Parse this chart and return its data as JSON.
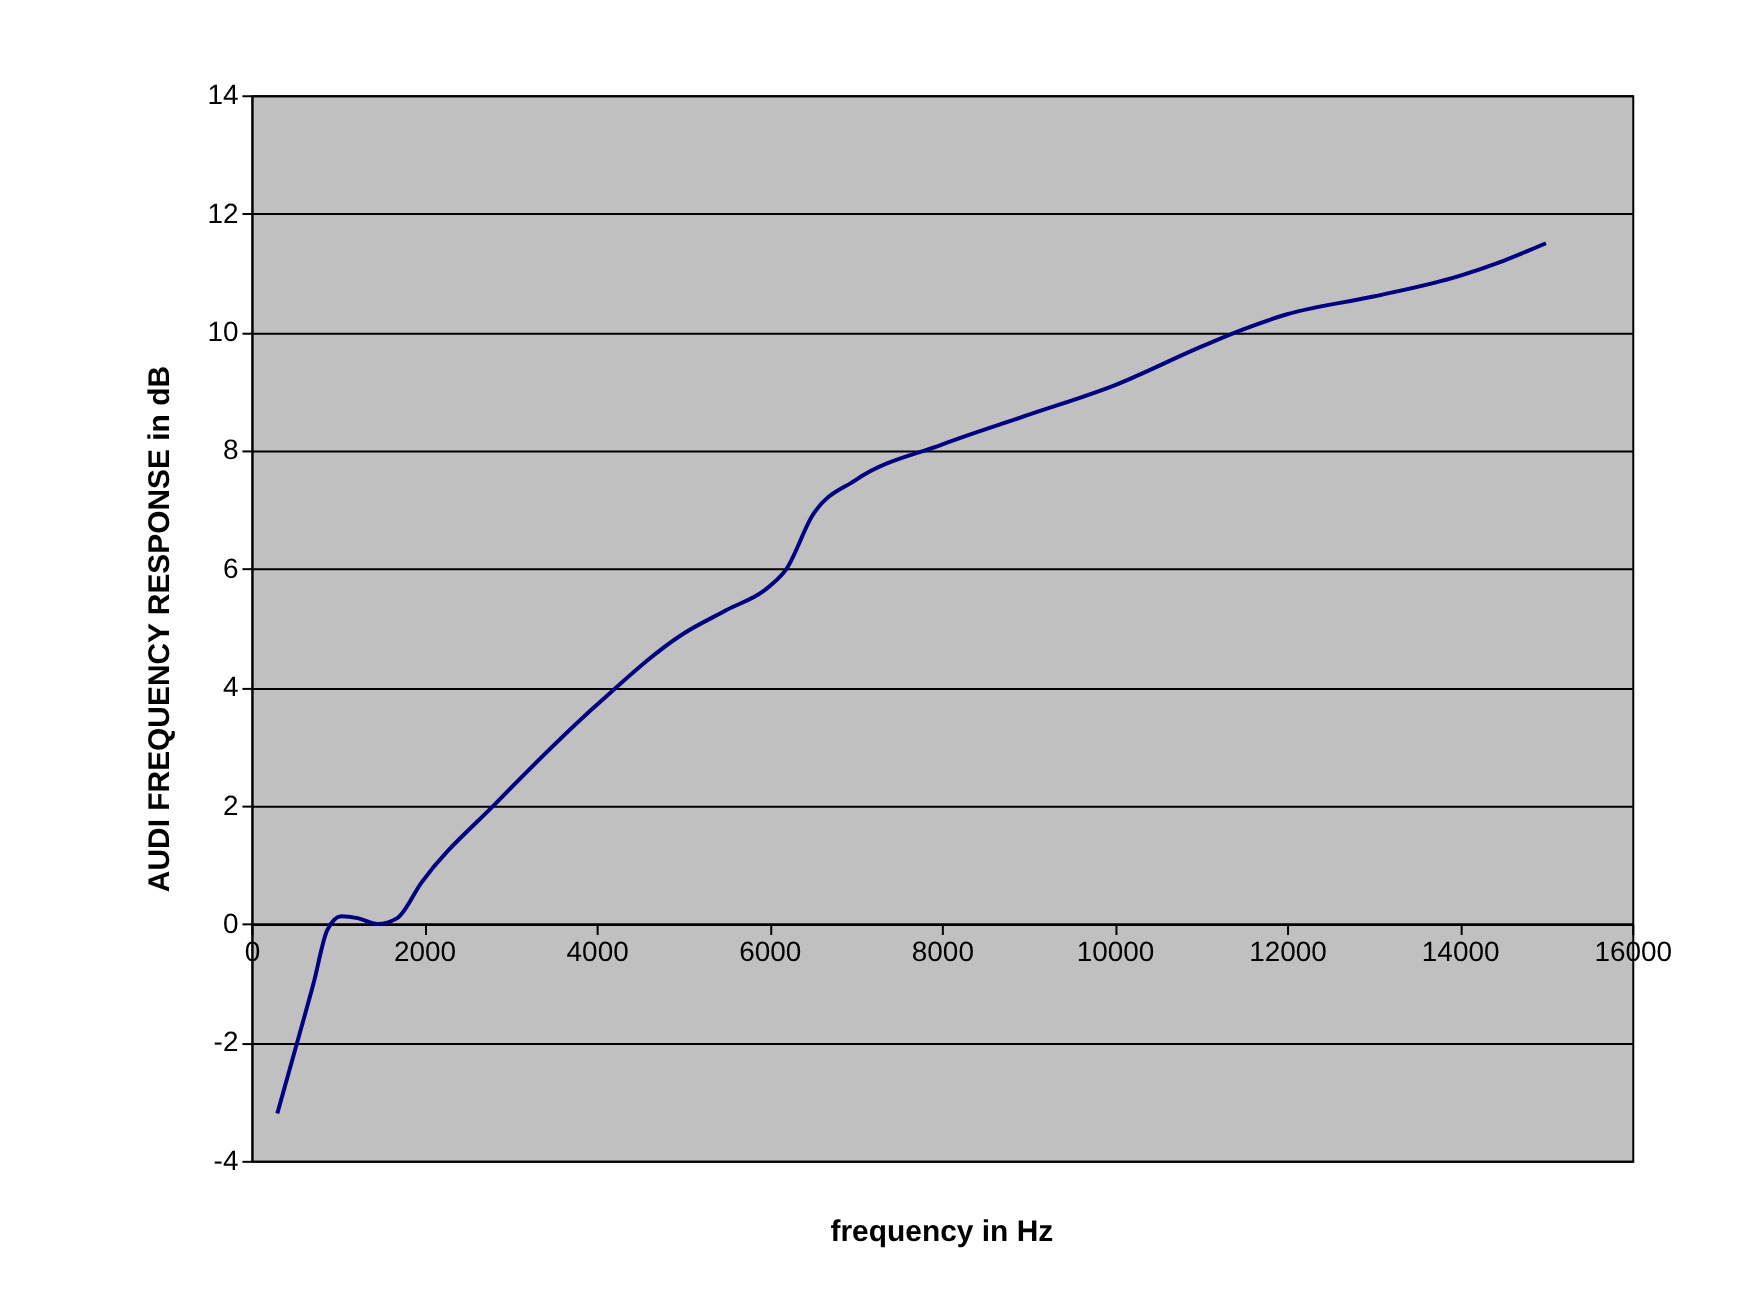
{
  "chart_data": {
    "type": "line",
    "xlabel": "frequency in Hz",
    "ylabel": "AUDI FREQUENCY RESPONSE in dB",
    "x": [
      300,
      530,
      720,
      880,
      1040,
      1230,
      1460,
      1690,
      1970,
      2840,
      4000,
      5000,
      5500,
      6000,
      6200,
      6500,
      7000,
      8000,
      9000,
      10000,
      11000,
      11500,
      12000,
      13000,
      14000,
      14500,
      15000
    ],
    "series": [
      {
        "color": "#000080",
        "values": [
          -3.2,
          -2.0,
          -1.0,
          -0.1,
          0.13,
          0.1,
          0,
          0.1,
          0.7,
          2.05,
          3.7,
          4.9,
          5.3,
          5.7,
          6.0,
          6.9,
          7.5,
          8.1,
          8.6,
          9.1,
          9.75,
          10.05,
          10.3,
          10.6,
          10.95,
          11.2,
          11.5
        ]
      }
    ],
    "xlim": [
      0,
      16000
    ],
    "xticks": [
      0,
      2000,
      4000,
      6000,
      8000,
      10000,
      12000,
      14000,
      16000
    ],
    "ylim": [
      -4,
      14
    ],
    "yticks": [
      -4,
      -2,
      0,
      2,
      4,
      6,
      8,
      10,
      12,
      14
    ],
    "grid": "y",
    "marker": "none",
    "line_style": "solid"
  }
}
